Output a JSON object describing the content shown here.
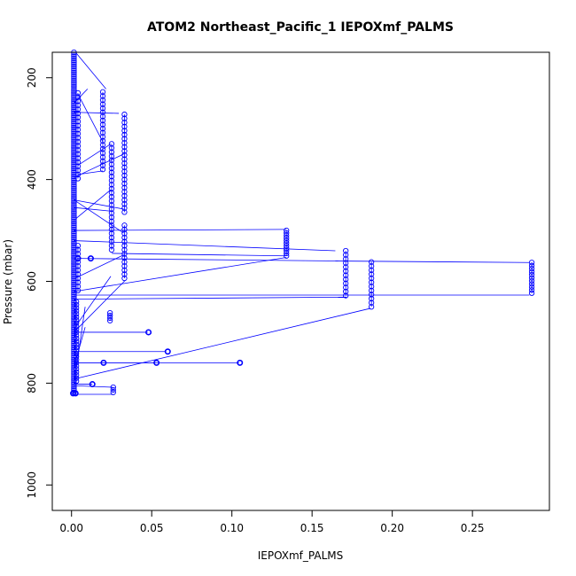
{
  "chart_data": {
    "type": "scatter",
    "title": "ATOM2 Northeast_Pacific_1 IEPOXmf_PALMS",
    "xlabel": "IEPOXmf_PALMS",
    "ylabel": "Pressure (mbar)",
    "xlim": [
      -0.012,
      0.298
    ],
    "ylim": [
      1050,
      150
    ],
    "y_reversed": true,
    "x_ticks": [
      0.0,
      0.05,
      0.1,
      0.15,
      0.2,
      0.25
    ],
    "x_tick_labels": [
      "0.00",
      "0.05",
      "0.10",
      "0.15",
      "0.20",
      "0.25"
    ],
    "y_ticks": [
      200,
      400,
      600,
      800,
      1000
    ],
    "y_tick_labels": [
      "200",
      "400",
      "600",
      "800",
      "1000"
    ],
    "grid": false,
    "legend": "none",
    "series": [
      {
        "color": "#0000ff",
        "marker": "open-circle",
        "connect_lines": true,
        "columns": [
          {
            "x": 0.0015,
            "p_start": 150,
            "p_end": 820,
            "step": 4
          },
          {
            "x": 0.004,
            "p_start": 230,
            "p_end": 400,
            "step": 8
          },
          {
            "x": 0.004,
            "p_start": 530,
            "p_end": 625,
            "step": 8
          },
          {
            "x": 0.003,
            "p_start": 640,
            "p_end": 800,
            "step": 6
          },
          {
            "x": 0.0195,
            "p_start": 228,
            "p_end": 385,
            "step": 8
          },
          {
            "x": 0.025,
            "p_start": 330,
            "p_end": 545,
            "step": 8
          },
          {
            "x": 0.033,
            "p_start": 272,
            "p_end": 470,
            "step": 8
          },
          {
            "x": 0.033,
            "p_start": 490,
            "p_end": 600,
            "step": 8
          },
          {
            "x": 0.134,
            "p_start": 500,
            "p_end": 553,
            "step": 5
          },
          {
            "x": 0.171,
            "p_start": 540,
            "p_end": 632,
            "step": 8
          },
          {
            "x": 0.187,
            "p_start": 562,
            "p_end": 655,
            "step": 8
          },
          {
            "x": 0.287,
            "p_start": 563,
            "p_end": 627,
            "step": 6
          },
          {
            "x": 0.024,
            "p_start": 662,
            "p_end": 678,
            "step": 5
          },
          {
            "x": 0.026,
            "p_start": 808,
            "p_end": 822,
            "step": 5
          }
        ],
        "extra_points": [
          {
            "x": 0.004,
            "y": 555
          },
          {
            "x": 0.012,
            "y": 555
          },
          {
            "x": 0.048,
            "y": 700
          },
          {
            "x": 0.06,
            "y": 738
          },
          {
            "x": 0.02,
            "y": 760
          },
          {
            "x": 0.053,
            "y": 760
          },
          {
            "x": 0.105,
            "y": 760
          },
          {
            "x": 0.013,
            "y": 802
          },
          {
            "x": 0.001,
            "y": 820
          },
          {
            "x": 0.0025,
            "y": 820
          }
        ],
        "connectors": [
          [
            0.0025,
            150,
            0.0215,
            222
          ],
          [
            0.0015,
            250,
            0.01,
            222
          ],
          [
            0.0015,
            268,
            0.0295,
            270
          ],
          [
            0.004,
            390,
            0.0195,
            383
          ],
          [
            0.004,
            372,
            0.0245,
            330
          ],
          [
            0.0015,
            396,
            0.0325,
            350
          ],
          [
            0.004,
            232,
            0.0195,
            326
          ],
          [
            0.0015,
            455,
            0.0245,
            462
          ],
          [
            0.0015,
            480,
            0.0245,
            420
          ],
          [
            0.0015,
            440,
            0.0325,
            505
          ],
          [
            0.0015,
            440,
            0.0325,
            458
          ],
          [
            0.0015,
            500,
            0.134,
            498
          ],
          [
            0.0015,
            520,
            0.1645,
            540
          ],
          [
            0.0035,
            555,
            0.1665,
            560
          ],
          [
            0.0015,
            595,
            0.0325,
            548
          ],
          [
            0.0015,
            620,
            0.134,
            553
          ],
          [
            0.025,
            545,
            0.1335,
            550
          ],
          [
            0.1645,
            560,
            0.2855,
            563
          ],
          [
            0.0015,
            627,
            0.2855,
            627
          ],
          [
            0.0015,
            635,
            0.1715,
            631
          ],
          [
            0.0015,
            693,
            0.0245,
            590
          ],
          [
            0.0015,
            700,
            0.0335,
            598
          ],
          [
            0.0015,
            700,
            0.0475,
            700
          ],
          [
            0.0015,
            738,
            0.059,
            738
          ],
          [
            0.0015,
            760,
            0.1045,
            760
          ],
          [
            0.0015,
            760,
            0.0525,
            760
          ],
          [
            0.0015,
            792,
            0.1865,
            653
          ],
          [
            0.0015,
            805,
            0.0255,
            808
          ],
          [
            0.0015,
            802,
            0.013,
            802
          ],
          [
            0.0015,
            822,
            0.026,
            822
          ],
          [
            0.0015,
            768,
            0.0085,
            690
          ],
          [
            0.0015,
            802,
            0.0085,
            650
          ]
        ]
      }
    ]
  }
}
